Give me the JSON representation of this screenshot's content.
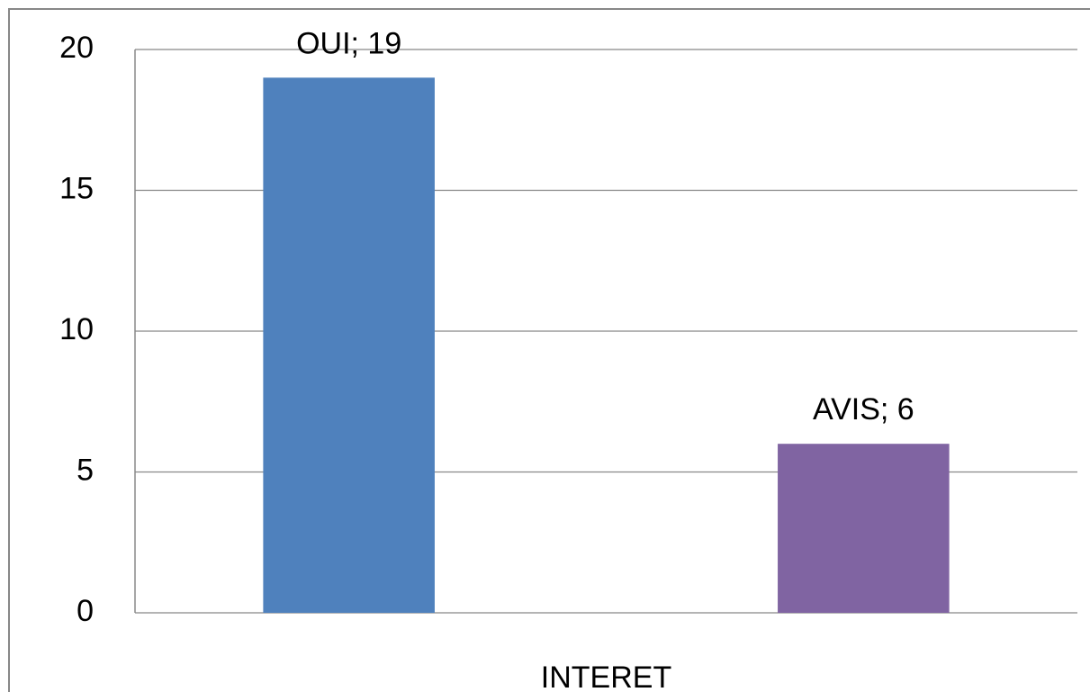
{
  "chart_data": {
    "type": "bar",
    "categories": [
      "INTERET"
    ],
    "series": [
      {
        "name": "OUI",
        "color": "#4f81bd",
        "values": [
          19
        ],
        "value_labels": [
          "OUI; 19"
        ]
      },
      {
        "name": "AVIS",
        "color": "#8064a2",
        "values": [
          6
        ],
        "value_labels": [
          "AVIS; 6"
        ]
      }
    ],
    "ylim": [
      0,
      20
    ],
    "yticks": [
      0,
      5,
      10,
      15,
      20
    ],
    "grid": true
  }
}
